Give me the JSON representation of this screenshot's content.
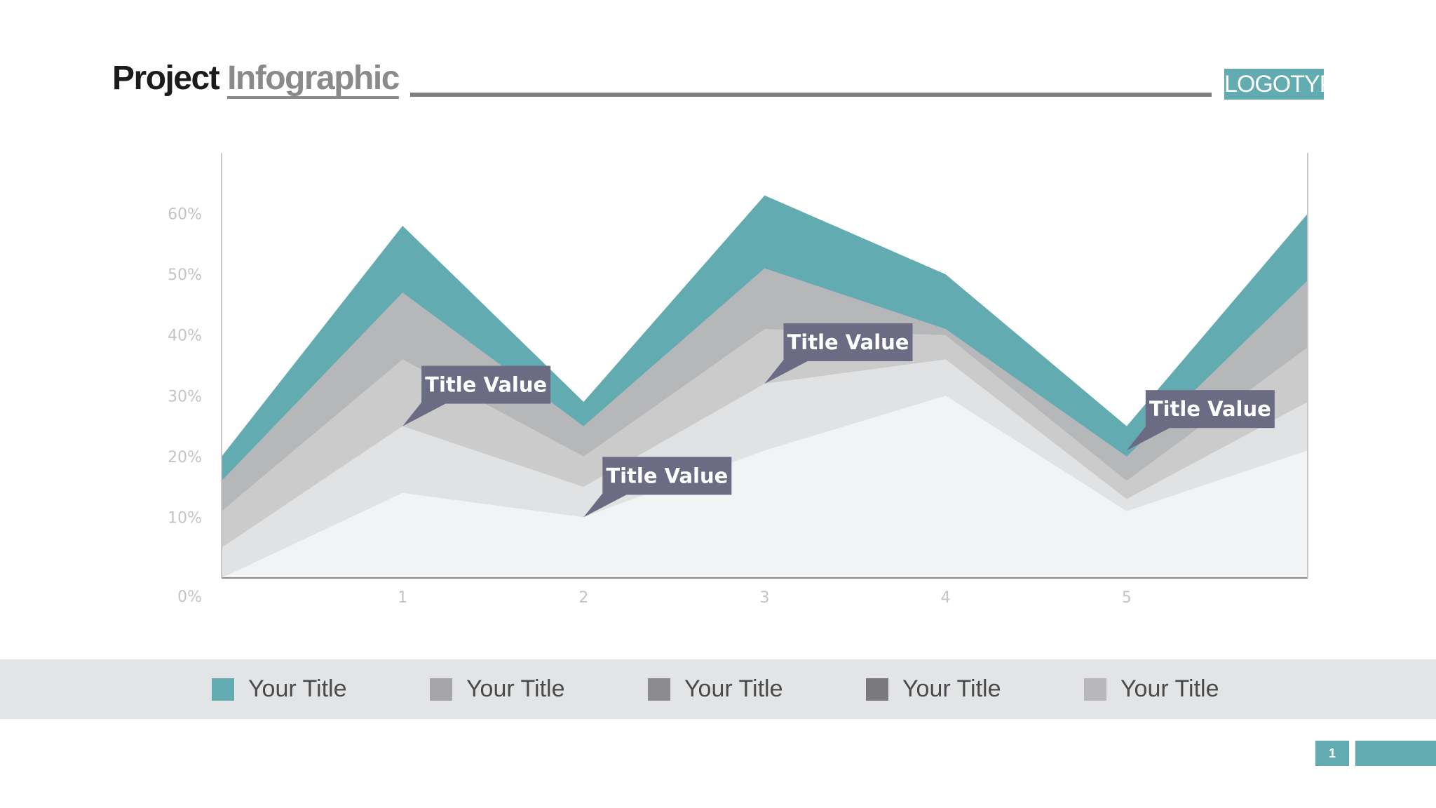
{
  "header": {
    "title_part1": "Project",
    "title_part2": "Infographic",
    "logo": "LOGOTYPE"
  },
  "colors": {
    "accent": "#62abb1",
    "callout": "#6b6b83",
    "axis": "#999999"
  },
  "chart_data": {
    "type": "area",
    "stacked": true,
    "x": [
      0,
      1,
      2,
      3,
      4,
      5,
      6
    ],
    "x_tick_labels": [
      "1",
      "2",
      "3",
      "4",
      "5"
    ],
    "y_tick_labels": [
      "0%",
      "10%",
      "20%",
      "30%",
      "40%",
      "50%",
      "60%"
    ],
    "ylim": [
      0,
      70
    ],
    "xlim": [
      0,
      6
    ],
    "grid": false,
    "series": [
      {
        "name": "Your Title",
        "color": "#f2f3f4",
        "values": [
          0,
          14,
          10,
          21,
          30,
          11,
          21
        ]
      },
      {
        "name": "Your Title",
        "color": "#e1e2e3",
        "values": [
          5,
          11,
          5,
          11,
          6,
          2,
          8
        ]
      },
      {
        "name": "Your Title",
        "color": "#cbcbcc",
        "values": [
          6,
          11,
          5,
          9,
          4,
          3,
          9
        ]
      },
      {
        "name": "Your Title",
        "color": "#b6b7b9",
        "values": [
          5,
          11,
          5,
          10,
          1,
          4,
          11
        ]
      },
      {
        "name": "Your Title",
        "color": "#62abb1",
        "values": [
          4,
          11,
          4,
          12,
          9,
          5,
          11
        ]
      }
    ],
    "callouts": [
      {
        "text": "Title Value",
        "x": 1.0,
        "y": 25
      },
      {
        "text": "Title Value",
        "x": 2.0,
        "y": 10
      },
      {
        "text": "Title Value",
        "x": 3.0,
        "y": 32
      },
      {
        "text": "Title Value",
        "x": 5.0,
        "y": 21
      }
    ]
  },
  "legend": {
    "items": [
      {
        "label": "Your Title",
        "color": "#62abb1"
      },
      {
        "label": "Your Title",
        "color": "#a6a6a8"
      },
      {
        "label": "Your Title",
        "color": "#8c8c8e"
      },
      {
        "label": "Your Title",
        "color": "#7a7a7c"
      },
      {
        "label": "Your Title",
        "color": "#b8b8ba"
      }
    ]
  },
  "footer": {
    "page_number": "1"
  }
}
